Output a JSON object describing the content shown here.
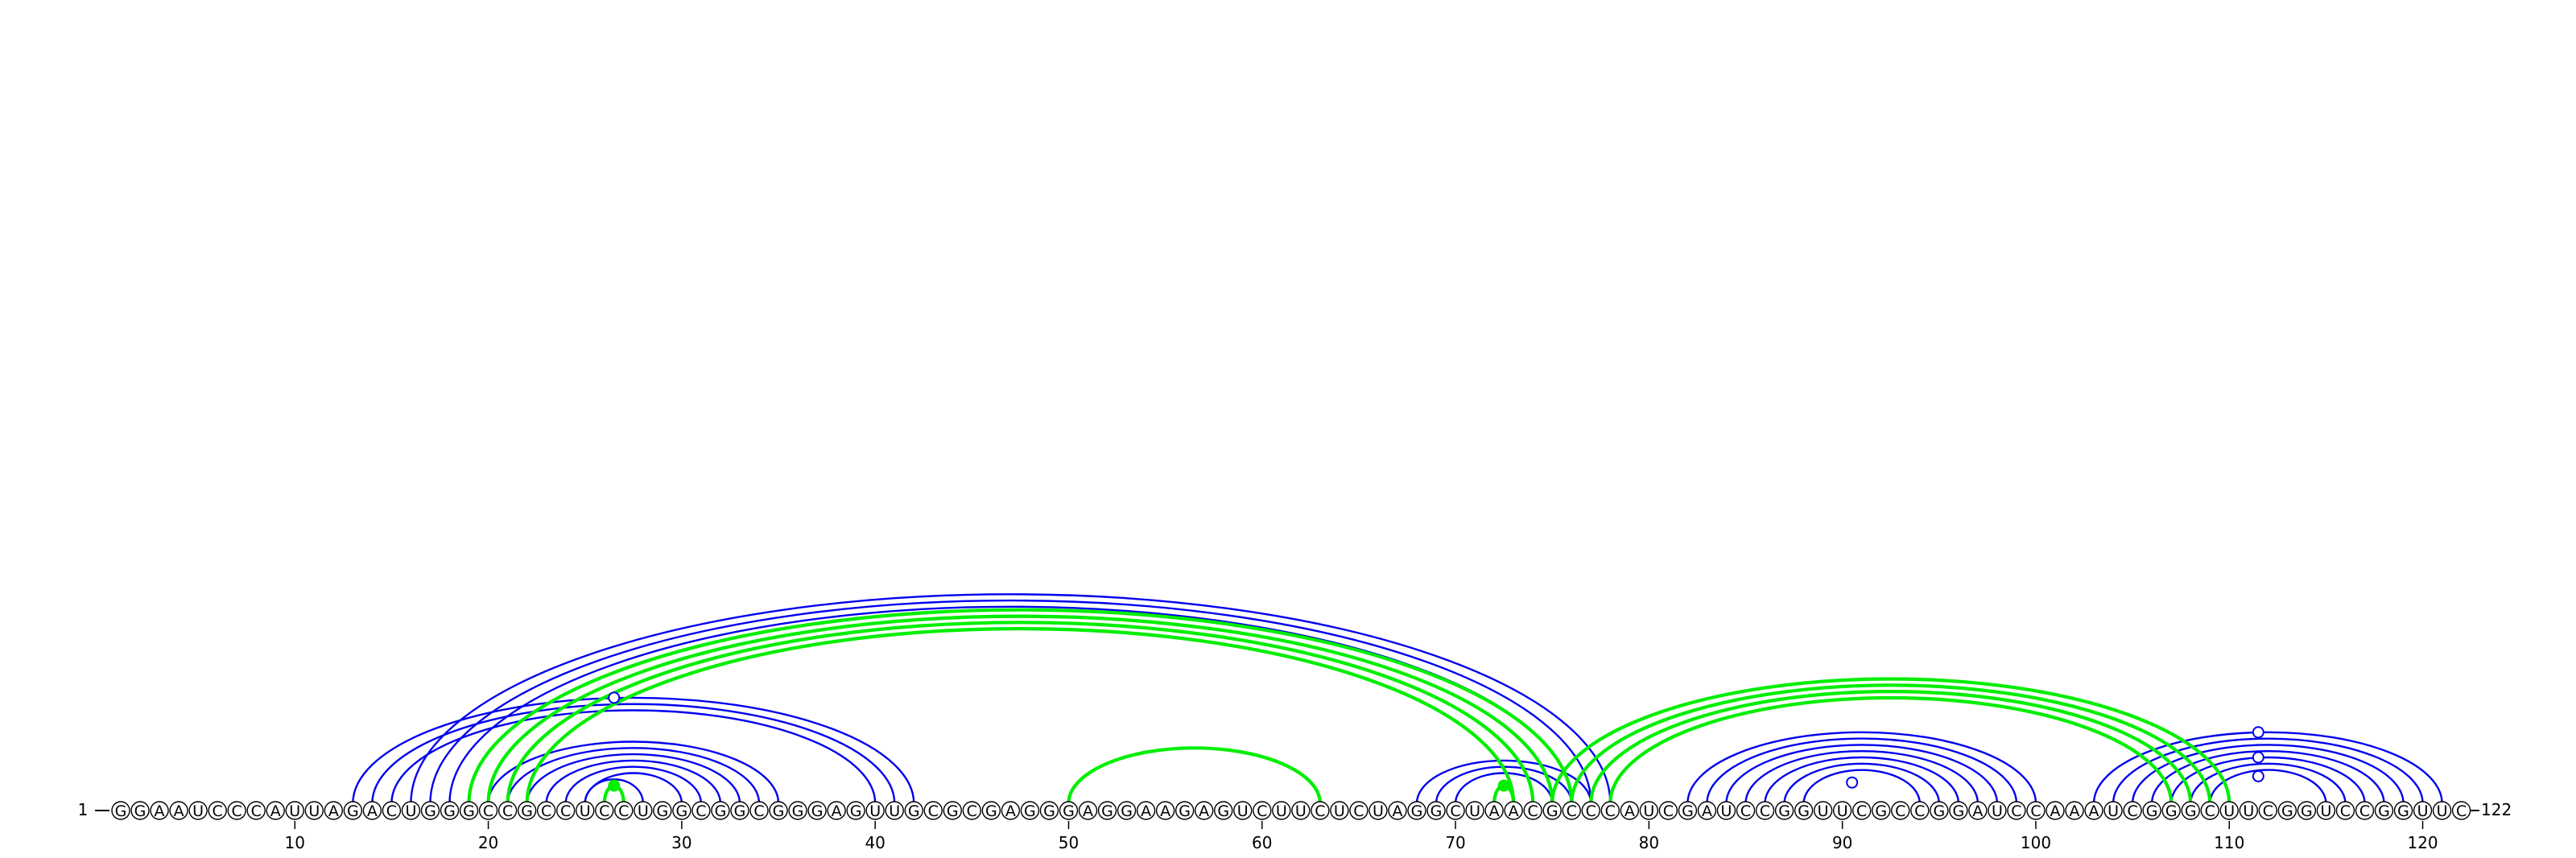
{
  "sequence": "GGAAUCCCAUUAGACUGGGCCGCCUCCUGGCGGCGGGAGUUGCGCGAGGGAGGAAGAGUCUUCUCUAGGCUAACGCCCAUCGAUCCGGUUCGCCGGAUCCAAAUCGGGCUUCGGUCCGGUUC",
  "start_label": "1",
  "end_label": "122",
  "ticks": [
    "10",
    "20",
    "30",
    "40",
    "50",
    "60",
    "70",
    "80",
    "90",
    "100",
    "110",
    "120"
  ],
  "colors": {
    "blue": "#0000ee",
    "green": "#00ee00",
    "circle_stroke": "#000000",
    "tick": "#000000"
  },
  "blue_stems": [
    {
      "i": 13,
      "j": 42,
      "n": 3
    },
    {
      "i": 16,
      "j": 78,
      "n": 3
    },
    {
      "i": 20,
      "j": 35,
      "n": 6
    },
    {
      "i": 25,
      "j": 28,
      "n": 1
    },
    {
      "i": 68,
      "j": 77,
      "n": 3
    },
    {
      "i": 82,
      "j": 100,
      "n": 7
    },
    {
      "i": 103,
      "j": 121,
      "n": 7
    }
  ],
  "green_stems": [
    {
      "i": 19,
      "j": 76,
      "n": 4
    },
    {
      "i": 50,
      "j": 63,
      "n": 1
    },
    {
      "i": 75,
      "j": 110,
      "n": 4
    },
    {
      "i": 26,
      "j": 27,
      "n": 1
    },
    {
      "i": 72,
      "j": 73,
      "n": 1
    }
  ],
  "markers": [
    {
      "pos": 26.5,
      "arc_span": 29,
      "fill": "#ffffff"
    },
    {
      "pos": 26.5,
      "arc_span": 1,
      "fill": "#00ee00"
    },
    {
      "pos": 72.5,
      "arc_span": 1,
      "fill": "#00ee00"
    },
    {
      "pos": 90.5,
      "arc_span": 2,
      "fill": "#ffffff"
    },
    {
      "pos": 111.5,
      "arc_span": 18,
      "fill": "#ffffff"
    },
    {
      "pos": 111.5,
      "arc_span": 10,
      "fill": "#ffffff"
    },
    {
      "pos": 111.5,
      "arc_span": 4,
      "fill": "#ffffff"
    }
  ]
}
